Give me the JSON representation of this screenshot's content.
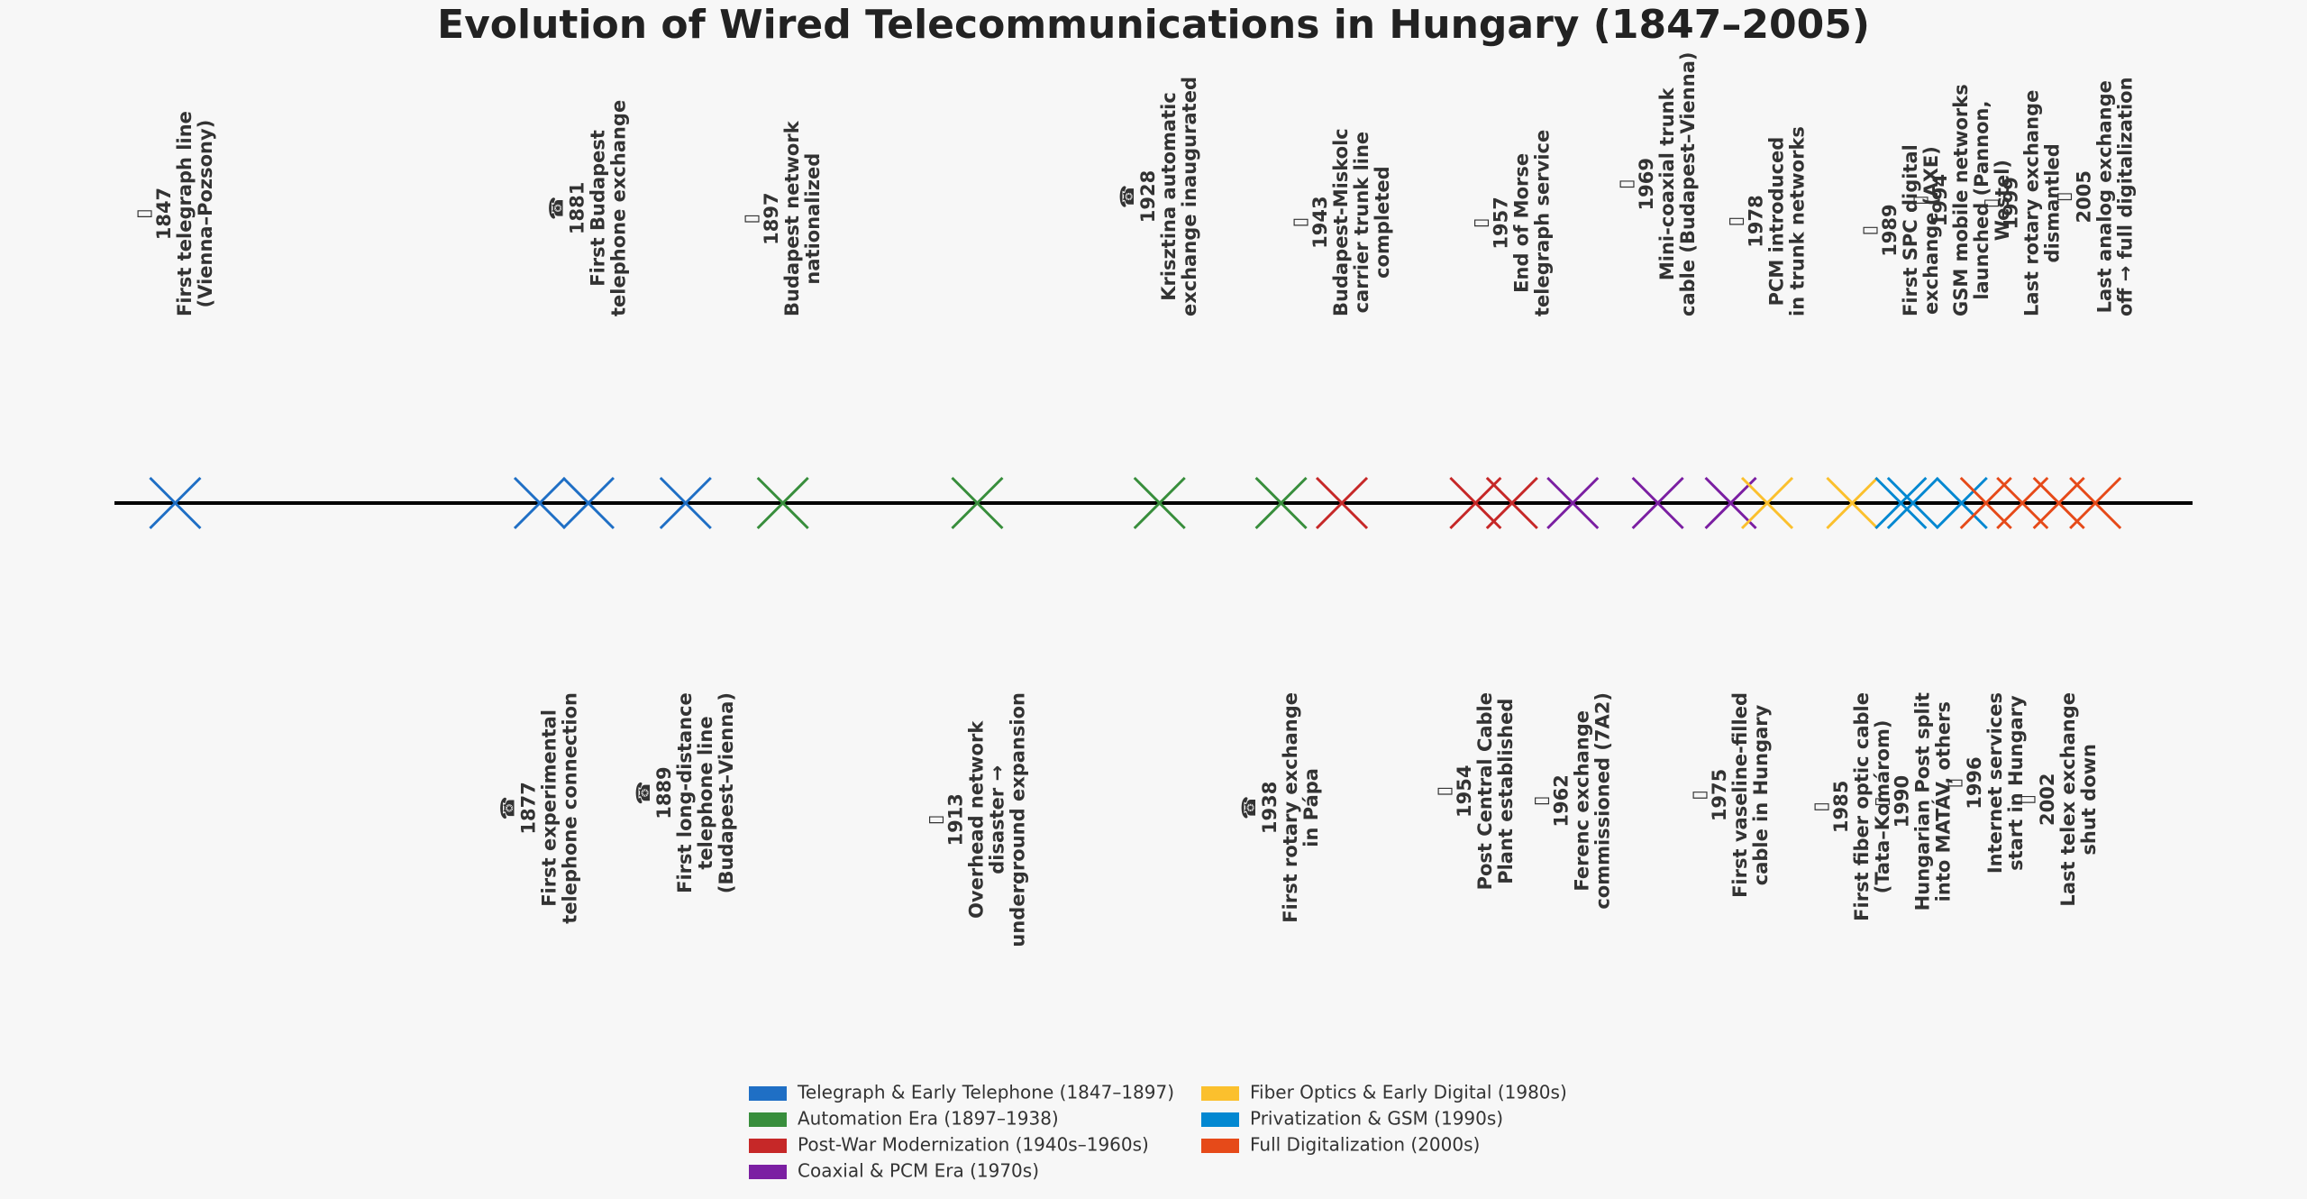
{
  "chart_data": {
    "type": "timeline",
    "title": "Evolution of Wired Telecommunications in Hungary (1847–2005)",
    "xlim": [
      1842,
      2013
    ],
    "eras": [
      {
        "name": "Telegraph & Early Telephone (1847–1897)",
        "color": "#1f6fc5"
      },
      {
        "name": "Automation Era (1897–1938)",
        "color": "#388e3c"
      },
      {
        "name": "Post-War Modernization (1940s–1960s)",
        "color": "#c62828"
      },
      {
        "name": "Coaxial & PCM Era (1970s)",
        "color": "#7b1fa2"
      },
      {
        "name": "Fiber Optics & Early Digital (1980s)",
        "color": "#fbc02d"
      },
      {
        "name": "Privatization & GSM (1990s)",
        "color": "#0288d1"
      },
      {
        "name": "Full Digitalization (2000s)",
        "color": "#e64a19"
      }
    ],
    "events": [
      {
        "year": 1847,
        "era": 0,
        "side": "above",
        "icon": "▯",
        "lines": [
          "First telegraph line",
          "(Vienna–Pozsony)"
        ]
      },
      {
        "year": 1877,
        "era": 0,
        "side": "below",
        "icon": "☎",
        "lines": [
          "First experimental",
          "telephone connection"
        ]
      },
      {
        "year": 1881,
        "era": 0,
        "side": "above",
        "icon": "☎",
        "lines": [
          "First Budapest",
          "telephone exchange"
        ]
      },
      {
        "year": 1889,
        "era": 0,
        "side": "below",
        "icon": "☎",
        "lines": [
          "First long-distance",
          "telephone line",
          "(Budapest–Vienna)"
        ]
      },
      {
        "year": 1897,
        "era": 1,
        "side": "above",
        "icon": "▯",
        "lines": [
          "Budapest network",
          "nationalized"
        ]
      },
      {
        "year": 1913,
        "era": 1,
        "side": "below",
        "icon": "▯",
        "lines": [
          "Overhead network",
          "disaster →",
          "underground expansion"
        ]
      },
      {
        "year": 1928,
        "era": 1,
        "side": "above",
        "icon": "☎",
        "lines": [
          "Krisztina automatic",
          "exchange inaugurated"
        ]
      },
      {
        "year": 1938,
        "era": 1,
        "side": "below",
        "icon": "☎",
        "lines": [
          "First rotary exchange",
          "in Pápa"
        ]
      },
      {
        "year": 1943,
        "era": 2,
        "side": "above",
        "icon": "▯",
        "lines": [
          "Budapest-Miskolc",
          "carrier trunk line",
          "completed"
        ]
      },
      {
        "year": 1954,
        "era": 2,
        "side": "below",
        "icon": "▯",
        "lines": [
          "Post Central Cable",
          "Plant established"
        ]
      },
      {
        "year": 1957,
        "era": 2,
        "side": "above",
        "icon": "▯",
        "lines": [
          "End of Morse",
          "telegraph service"
        ]
      },
      {
        "year": 1962,
        "era": 3,
        "side": "below",
        "icon": "▯",
        "lines": [
          "Ferenc exchange",
          "commissioned (7A2)"
        ]
      },
      {
        "year": 1969,
        "era": 3,
        "side": "above",
        "icon": "▯",
        "lines": [
          "Mini-coaxial trunk",
          "cable (Budapest–Vienna)"
        ]
      },
      {
        "year": 1975,
        "era": 3,
        "side": "below",
        "icon": "▯",
        "lines": [
          "First vaseline-filled",
          "cable in Hungary"
        ]
      },
      {
        "year": 1978,
        "era": 4,
        "side": "above",
        "icon": "▯",
        "lines": [
          "PCM introduced",
          "in trunk networks"
        ]
      },
      {
        "year": 1985,
        "era": 4,
        "side": "below",
        "icon": "▯",
        "lines": [
          "First fiber optic cable",
          "(Tata–Komárom)"
        ]
      },
      {
        "year": 1989,
        "era": 5,
        "side": "above",
        "icon": "▯",
        "lines": [
          "First SPC digital",
          "exchange (AXE)"
        ]
      },
      {
        "year": 1990,
        "era": 5,
        "side": "below",
        "icon": "▯",
        "lines": [
          "Hungarian Post split",
          "into MATÁV, others"
        ]
      },
      {
        "year": 1994,
        "era": 5,
        "side": "above",
        "icon": "▯",
        "lines": [
          "GSM mobile networks",
          "launched (Pannon,",
          "Westel)"
        ]
      },
      {
        "year": 1996,
        "era": 6,
        "side": "below",
        "icon": "▯",
        "lines": [
          "Internet services",
          "start in Hungary"
        ]
      },
      {
        "year": 1999,
        "era": 6,
        "side": "above",
        "icon": "▯",
        "lines": [
          "Last rotary exchange",
          "dismantled"
        ]
      },
      {
        "year": 2002,
        "era": 6,
        "side": "below",
        "icon": "▯",
        "lines": [
          "Last telex exchange",
          "shut down"
        ]
      },
      {
        "year": 2005,
        "era": 6,
        "side": "above",
        "icon": "▯",
        "lines": [
          "Last analog exchange",
          "off → full digitalization"
        ]
      }
    ]
  }
}
